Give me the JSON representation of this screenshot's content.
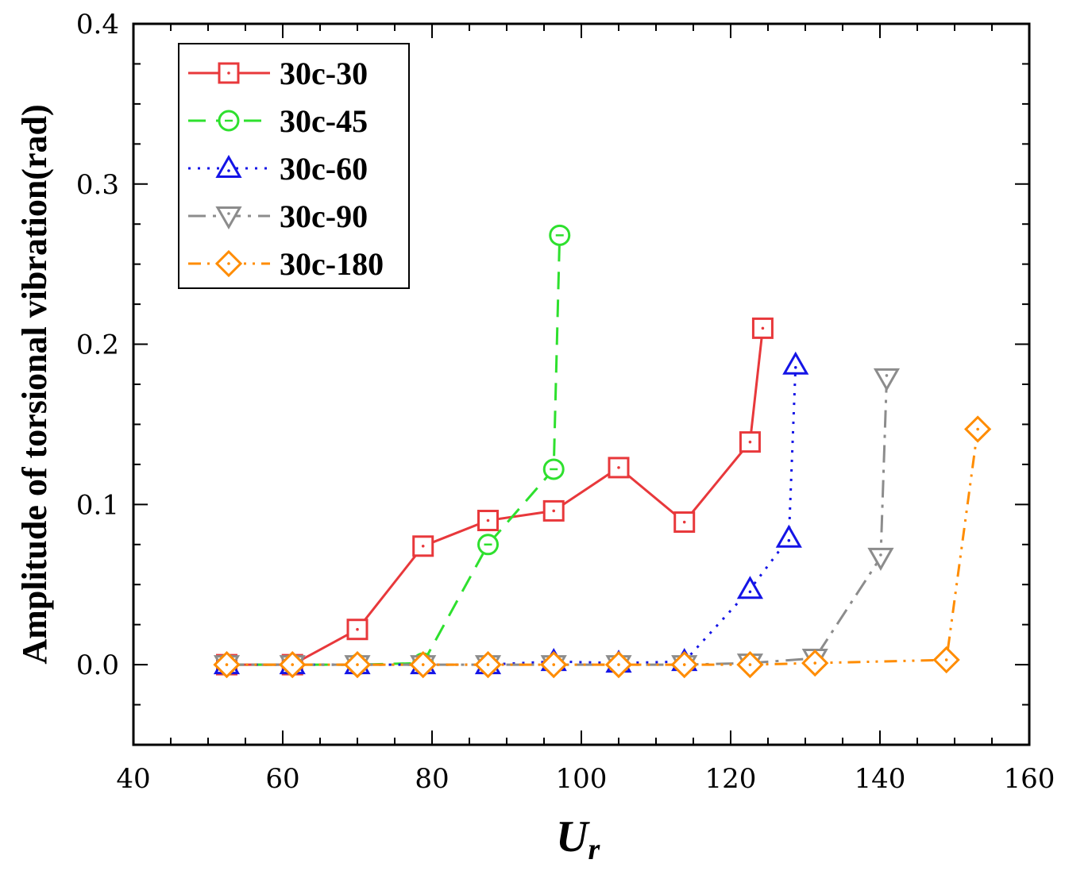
{
  "chart_data": {
    "type": "line",
    "title": "",
    "xlabel": "U",
    "xlabel_sub": "r",
    "ylabel": "Amplitude of torsional vibration(rad)",
    "xlim": [
      40,
      160
    ],
    "ylim": [
      -0.05,
      0.4
    ],
    "x_ticks": [
      40,
      60,
      80,
      100,
      120,
      140,
      160
    ],
    "y_ticks": [
      0.0,
      0.1,
      0.2,
      0.3,
      0.4
    ],
    "x_tick_labels": [
      "40",
      "60",
      "80",
      "100",
      "120",
      "140",
      "160"
    ],
    "y_tick_labels": [
      "0.0",
      "0.1",
      "0.2",
      "0.3",
      "0.4"
    ],
    "legend_position": "top-left",
    "series": [
      {
        "name": "30c-30",
        "color": "#e8383b",
        "dash": "solid",
        "marker": "square",
        "x": [
          52.5,
          61.3,
          70,
          78.8,
          87.5,
          96.3,
          105,
          113.8,
          122.6,
          124.3
        ],
        "y": [
          0.0,
          0.0,
          0.022,
          0.074,
          0.09,
          0.096,
          0.123,
          0.089,
          0.139,
          0.21
        ]
      },
      {
        "name": "30c-45",
        "color": "#2ee02e",
        "dash": "dashed",
        "marker": "circle",
        "x": [
          52.5,
          61.3,
          70,
          78.8,
          87.5,
          96.3,
          97.1
        ],
        "y": [
          0.0,
          0.0,
          0.0,
          0.001,
          0.075,
          0.122,
          0.268
        ]
      },
      {
        "name": "30c-60",
        "color": "#1414e6",
        "dash": "dotted",
        "marker": "triangle-up",
        "x": [
          52.5,
          61.3,
          70,
          78.8,
          87.5,
          96.3,
          105,
          113.8,
          122.6,
          127.8,
          128.7
        ],
        "y": [
          0.0,
          0.0,
          0.0,
          0.0,
          0.0,
          0.002,
          0.001,
          0.002,
          0.047,
          0.079,
          0.187
        ]
      },
      {
        "name": "30c-90",
        "color": "#8c8c8c",
        "dash": "dashdot",
        "marker": "triangle-down",
        "x": [
          52.5,
          61.3,
          70,
          78.8,
          87.5,
          96.3,
          105,
          113.8,
          122.6,
          131.3,
          140.1,
          140.9
        ],
        "y": [
          0.0,
          0.0,
          0.0,
          0.0,
          0.0,
          0.0,
          0.0,
          0.0,
          0.001,
          0.004,
          0.067,
          0.179
        ]
      },
      {
        "name": "30c-180",
        "color": "#ff8c00",
        "dash": "dashdotdot",
        "marker": "diamond",
        "x": [
          52.5,
          61.3,
          70,
          78.8,
          87.5,
          96.3,
          105,
          113.8,
          122.6,
          131.3,
          148.9,
          153.1
        ],
        "y": [
          0.0,
          0.0,
          0.0,
          0.0,
          0.0,
          0.0,
          0.0,
          0.0,
          0.0,
          0.001,
          0.003,
          0.147
        ]
      }
    ]
  }
}
